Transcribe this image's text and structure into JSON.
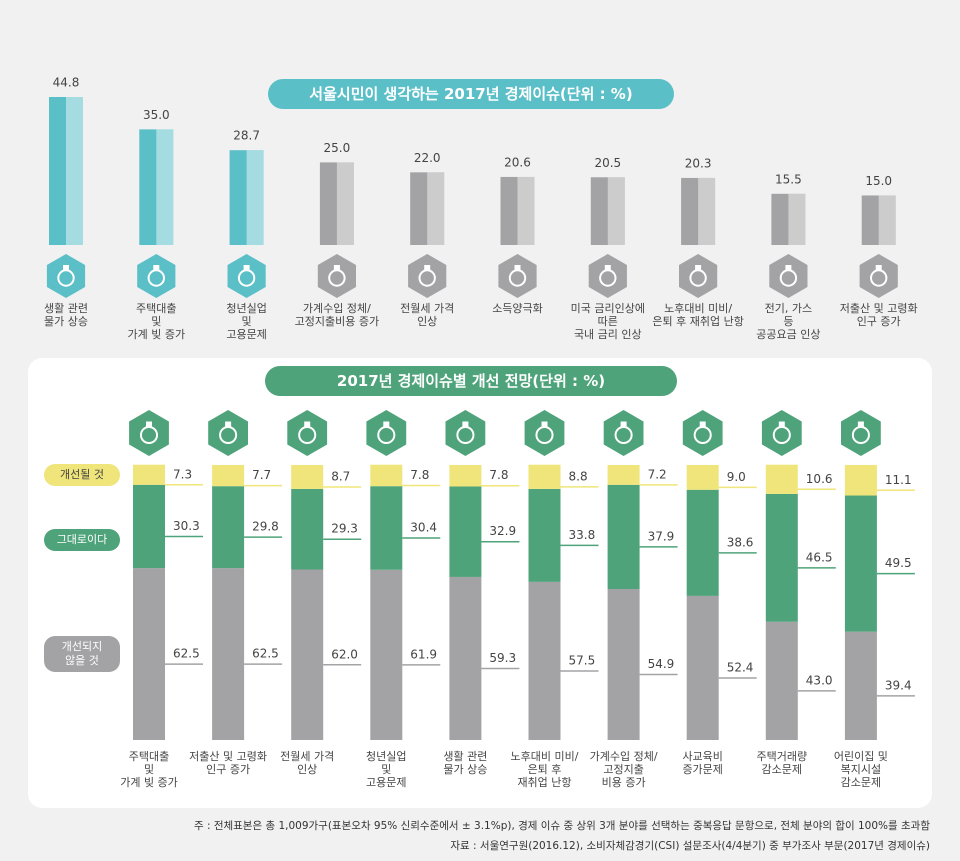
{
  "chart_data": [
    {
      "type": "bar",
      "title": "서울시민이 생각하는 2017년 경제이슈(단위 : %)",
      "categories": [
        "생활 관련\n물가 상승",
        "주택대출\n및\n가계 빚 증가",
        "청년실업\n및\n고용문제",
        "가계수입 정체/\n고정지출비용 증가",
        "전월세 가격\n인상",
        "소득양극화",
        "미국 금리인상에\n따른\n국내 금리 인상",
        "노후대비 미비/\n은퇴 후 재취업 난항",
        "전기, 가스\n등\n공공요금 인상",
        "저출산 및 고령화\n인구 증가"
      ],
      "values": [
        44.8,
        35.0,
        28.7,
        25.0,
        22.0,
        20.6,
        20.5,
        20.3,
        15.5,
        15.0
      ],
      "value_labels": [
        "44.8",
        "35.0",
        "28.7",
        "25.0",
        "22.0",
        "20.6",
        "20.5",
        "20.3",
        "15.5",
        "15.0"
      ],
      "colors": [
        "#5bbfc8",
        "#5bbfc8",
        "#5bbfc8",
        "#a3a3a5",
        "#a3a3a5",
        "#a3a3a5",
        "#a3a3a5",
        "#a3a3a5",
        "#a3a3a5",
        "#a3a3a5"
      ]
    },
    {
      "type": "stacked_bar",
      "title": "2017년 경제이슈별 개선 전망(단위 : %)",
      "categories": [
        "주택대출\n및\n가계 빚 증가",
        "저출산 및 고령화\n인구 증가",
        "전월세 가격\n인상",
        "청년실업\n및\n고용문제",
        "생활 관련\n물가 상승",
        "노후대비 미비/\n은퇴 후\n재취업 난항",
        "가계수입 정체/\n고정지출\n비용 증가",
        "사교육비\n증가문제",
        "주택거래량\n감소문제",
        "어린이집 및\n복지시설\n감소문제"
      ],
      "series": [
        {
          "name": "개선될 것",
          "color": "#efe57a",
          "values": [
            7.3,
            7.7,
            8.7,
            7.8,
            7.8,
            8.8,
            7.2,
            9.0,
            10.6,
            11.1
          ],
          "value_labels": [
            "7.3",
            "7.7",
            "8.7",
            "7.8",
            "7.8",
            "8.8",
            "7.2",
            "9.0",
            "10.6",
            "11.1"
          ]
        },
        {
          "name": "그대로이다",
          "color": "#4ea37a",
          "values": [
            30.3,
            29.8,
            29.3,
            30.4,
            32.9,
            33.8,
            37.9,
            38.6,
            46.5,
            49.5
          ],
          "value_labels": [
            "30.3",
            "29.8",
            "29.3",
            "30.4",
            "32.9",
            "33.8",
            "37.9",
            "38.6",
            "46.5",
            "49.5"
          ]
        },
        {
          "name": "개선되지\n않을 것",
          "color": "#a3a3a5",
          "values": [
            62.5,
            62.5,
            62.0,
            61.9,
            59.3,
            57.5,
            54.9,
            52.4,
            43.0,
            39.4
          ],
          "value_labels": [
            "62.5",
            "62.5",
            "62.0",
            "61.9",
            "59.3",
            "57.5",
            "54.9",
            "52.4",
            "43.0",
            "39.4"
          ]
        }
      ]
    }
  ],
  "notes": [
    "주 : 전체표본은 총 1,009가구(표본오차 95% 신뢰수준에서 ± 3.1%p), 경제 이슈 중 상위 3개 분야를 선택하는 중복응답 문항으로, 전체 분야의 합이 100%를 초과함",
    "자료 : 서울연구원(2016.12), 소비자체감경기(CSI) 설문조사(4/4분기) 중 부가조사 부문(2017년 경제이슈)"
  ]
}
